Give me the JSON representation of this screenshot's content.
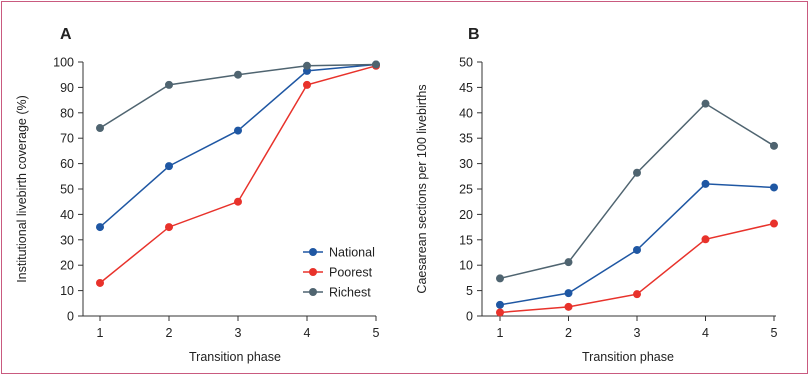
{
  "chart_data": [
    {
      "type": "line",
      "panel_label": "A",
      "xlabel": "Transition phase",
      "ylabel": "Institutional livebirth coverage (%)",
      "x": [
        1,
        2,
        3,
        4,
        5
      ],
      "xlim": [
        1,
        5
      ],
      "ylim": [
        0,
        100
      ],
      "yticks": [
        0,
        10,
        20,
        30,
        40,
        50,
        60,
        70,
        80,
        90,
        100
      ],
      "grid": false,
      "legend": "bottom-right",
      "series": [
        {
          "name": "National",
          "color": "#1f57a3",
          "values": [
            35,
            59,
            73,
            96.5,
            99
          ]
        },
        {
          "name": "Poorest",
          "color": "#e8322b",
          "values": [
            13,
            35,
            45,
            91,
            98.5
          ]
        },
        {
          "name": "Richest",
          "color": "#4f6470",
          "values": [
            74,
            91,
            95,
            98.5,
            99
          ]
        }
      ]
    },
    {
      "type": "line",
      "panel_label": "B",
      "xlabel": "Transition phase",
      "ylabel": "Caesarean sections per 100 livebirths",
      "x": [
        1,
        2,
        3,
        4,
        5
      ],
      "xlim": [
        1,
        5
      ],
      "ylim": [
        0,
        50
      ],
      "yticks": [
        0,
        5,
        10,
        15,
        20,
        25,
        30,
        35,
        40,
        45,
        50
      ],
      "grid": false,
      "series": [
        {
          "name": "National",
          "color": "#1f57a3",
          "values": [
            2.2,
            4.5,
            13,
            26,
            25.3
          ]
        },
        {
          "name": "Poorest",
          "color": "#e8322b",
          "values": [
            0.7,
            1.8,
            4.3,
            15.1,
            18.2
          ]
        },
        {
          "name": "Richest",
          "color": "#4f6470",
          "values": [
            7.4,
            10.6,
            28.2,
            41.8,
            33.5
          ]
        }
      ]
    }
  ]
}
